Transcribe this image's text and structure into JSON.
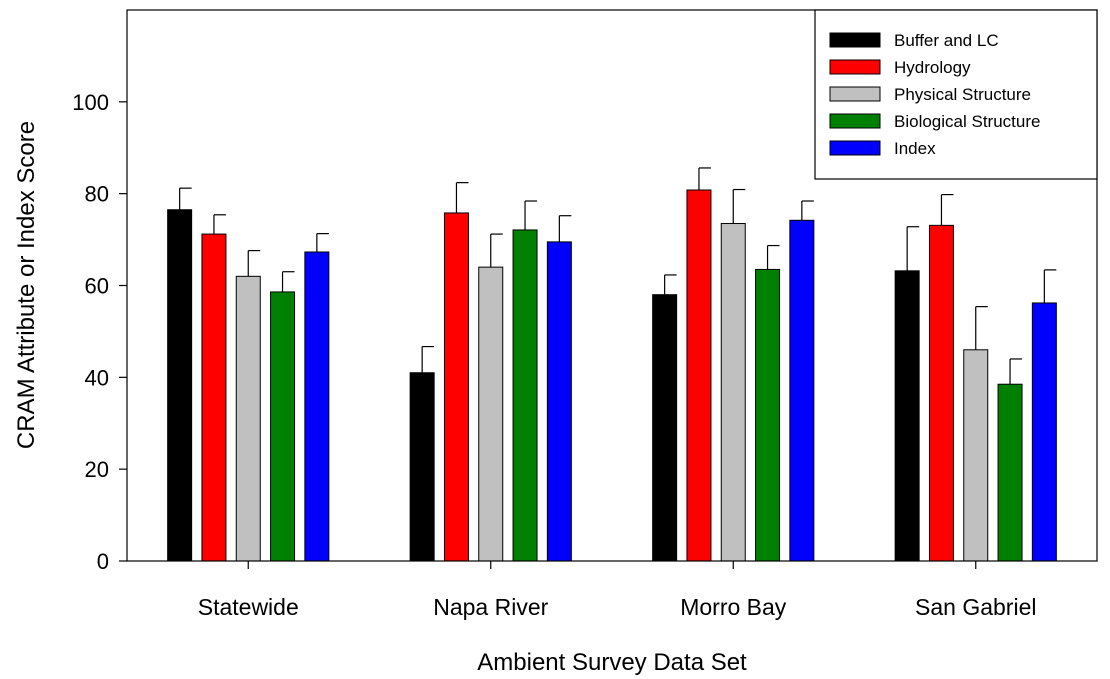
{
  "chart_data": {
    "type": "bar",
    "title": "",
    "xlabel": "Ambient Survey Data Set",
    "ylabel": "CRAM Attribute or Index Score",
    "ylim": [
      0,
      120
    ],
    "yticks": [
      0,
      20,
      40,
      60,
      80,
      100
    ],
    "categories": [
      "Statewide",
      "Napa River",
      "Morro Bay",
      "San Gabriel"
    ],
    "series": [
      {
        "name": "Buffer and LC",
        "color": "#000000",
        "values": [
          76.5,
          41.0,
          58.0,
          63.2
        ],
        "errors": [
          4.7,
          5.7,
          4.3,
          9.6
        ]
      },
      {
        "name": "Hydrology",
        "color": "#ff0000",
        "values": [
          71.2,
          75.8,
          80.8,
          73.1
        ],
        "errors": [
          4.2,
          6.6,
          4.8,
          6.7
        ]
      },
      {
        "name": "Physical Structure",
        "color": "#c0c0c0",
        "values": [
          62.0,
          64.0,
          73.5,
          46.0
        ],
        "errors": [
          5.6,
          7.2,
          7.4,
          9.4
        ]
      },
      {
        "name": "Biological Structure",
        "color": "#008000",
        "values": [
          58.6,
          72.1,
          63.5,
          38.5
        ],
        "errors": [
          4.4,
          6.3,
          5.2,
          5.5
        ]
      },
      {
        "name": "Index",
        "color": "#0000ff",
        "values": [
          67.3,
          69.5,
          74.2,
          56.2
        ],
        "errors": [
          4.0,
          5.7,
          4.2,
          7.2
        ]
      }
    ],
    "grid": false,
    "legend_position": "top-right",
    "error_bars": "upper"
  }
}
